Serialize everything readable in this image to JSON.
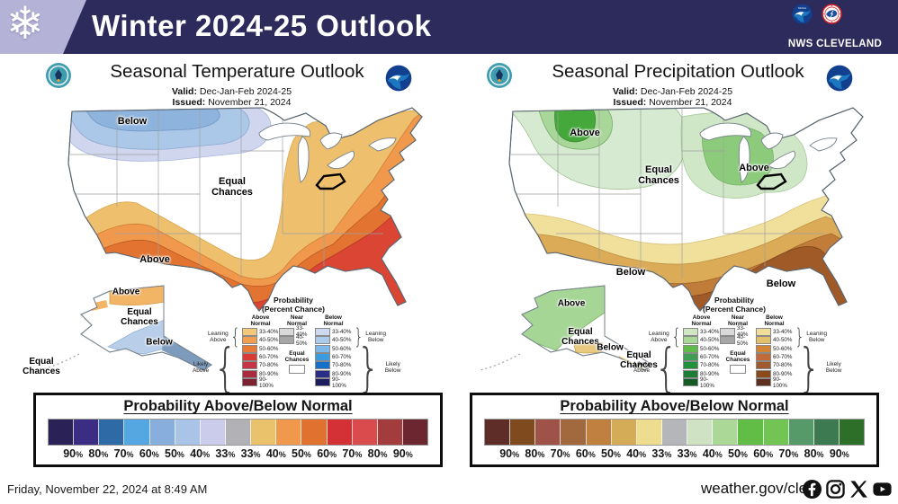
{
  "header": {
    "title": "Winter 2024-25 Outlook",
    "org": "NWS CLEVELAND",
    "bg_color": "#2d2a5c",
    "chip_color": "#b5b2d8",
    "snowflake_icon": "snowflake"
  },
  "panels": {
    "temp": {
      "title": "Seasonal Temperature Outlook",
      "valid_label": "Valid:",
      "valid_value": "Dec-Jan-Feb 2024-25",
      "issued_label": "Issued:",
      "issued_value": "November 21, 2024",
      "labels": {
        "conus_below": "Below",
        "conus_equal": "Equal\nChances",
        "conus_above": "Above",
        "ak_above": "Above",
        "ak_equal": "Equal\nChances",
        "ak_below": "Below",
        "hi_equal": "Equal\nChances"
      },
      "legend": {
        "above_colors": [
          "#f3c878",
          "#f09e50",
          "#e87a38",
          "#da3a34",
          "#c43444",
          "#a92c3e",
          "#7c2230"
        ],
        "below_colors": [
          "#ccd9f0",
          "#aacbea",
          "#7db8e8",
          "#3c9ce0",
          "#1470c8",
          "#2a2d86",
          "#1c1c5e"
        ]
      },
      "colorbar": {
        "title": "Probability Above/Below Normal",
        "colors": [
          "#2a2156",
          "#3c2d84",
          "#2e6ba6",
          "#55a7e1",
          "#87aedd",
          "#aac4e7",
          "#cbcceb",
          "#b2b2b6",
          "#ebc26c",
          "#f0994d",
          "#e1712f",
          "#d43137",
          "#d94b4d",
          "#a33d3d",
          "#6b2630"
        ],
        "labels": [
          "90%",
          "80%",
          "70%",
          "60%",
          "50%",
          "40%",
          "33%",
          "33%",
          "40%",
          "50%",
          "60%",
          "70%",
          "80%",
          "90%"
        ]
      }
    },
    "precip": {
      "title": "Seasonal Precipitation Outlook",
      "valid_label": "Valid:",
      "valid_value": "Dec-Jan-Feb 2024-25",
      "issued_label": "Issued:",
      "issued_value": "November 21, 2024",
      "labels": {
        "nw_above": "Above",
        "lakes_above": "Above",
        "conus_equal": "Equal\nChances",
        "below_south": "Below",
        "below_se": "Below",
        "ak_above": "Above",
        "ak_equal": "Equal\nChances",
        "ak_below": "Below",
        "ak_equal2": "Equal\nChances"
      },
      "legend": {
        "above_colors": [
          "#cfe8c2",
          "#a8d895",
          "#5dbb49",
          "#3f9e53",
          "#21923c",
          "#1b7e34",
          "#145c26"
        ],
        "below_colors": [
          "#f0df9a",
          "#e3c06a",
          "#d28435",
          "#c06a3a",
          "#a05a30",
          "#8a4a1c",
          "#5e3020"
        ]
      },
      "colorbar": {
        "title": "Probability Above/Below Normal",
        "colors": [
          "#5e2d28",
          "#7e4a1e",
          "#9e5248",
          "#a2693f",
          "#c08140",
          "#d4ab56",
          "#eedd8e",
          "#b4b6ba",
          "#cfe3c4",
          "#abd797",
          "#62bd46",
          "#72c553",
          "#579a69",
          "#3d7a52",
          "#2d6e28"
        ],
        "labels": [
          "90%",
          "80%",
          "70%",
          "60%",
          "50%",
          "40%",
          "33%",
          "33%",
          "40%",
          "50%",
          "60%",
          "70%",
          "80%",
          "90%"
        ]
      }
    }
  },
  "legend_common": {
    "title_1": "Probability",
    "title_2": "(Percent Chance)",
    "above_header": "Above\nNormal",
    "near_header": "Near\nNormal",
    "below_header": "Below\nNormal",
    "rows": [
      "33-40%",
      "40-50%",
      "50-60%",
      "60-70%",
      "70-80%",
      "80-90%",
      "90-100%"
    ],
    "near_rows": [
      "33-40%",
      "40-50%"
    ],
    "near_colors": [
      "#d9d9d9",
      "#a6a6a6"
    ],
    "equal_chances": "Equal\nChances",
    "leaning_above": "Leaning\nAbove",
    "likely_above": "Likely\nAbove",
    "leaning_below": "Leaning\nBelow",
    "likely_below": "Likely\nBelow"
  },
  "footer": {
    "date": "Friday, November 22, 2024 at 8:49 AM",
    "url": "weather.gov/cle",
    "icons": [
      "facebook-icon",
      "instagram-icon",
      "x-icon",
      "youtube-icon"
    ]
  }
}
